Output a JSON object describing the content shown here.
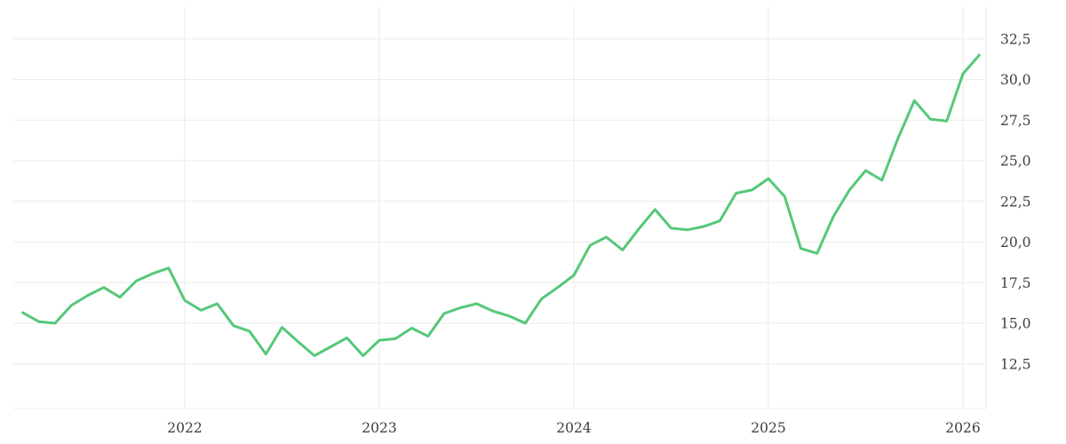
{
  "app": {
    "description": "stock price history line chart"
  },
  "colors": {
    "background": "#ffffff",
    "grid": "#ebebeb",
    "axis_label": "#3d3d3d",
    "line": "#55c878"
  },
  "chart_data": {
    "type": "line",
    "title": "",
    "xlabel": "",
    "ylabel": "",
    "grid": true,
    "legend": false,
    "decimal_separator": ",",
    "x_ticks": [
      "2022",
      "2023",
      "2024",
      "2025",
      "2026"
    ],
    "x_tick_years": [
      2022,
      2023,
      2024,
      2025,
      2026
    ],
    "y_ticks": [
      "32,5",
      "30,0",
      "27,5",
      "25,0",
      "22,5",
      "20,0",
      "17,5",
      "15,0",
      "12,5"
    ],
    "y_tick_values": [
      32.5,
      30.0,
      27.5,
      25.0,
      22.5,
      20.0,
      17.5,
      15.0,
      12.5
    ],
    "ylim_visible": [
      9.8,
      34.5
    ],
    "series": [
      {
        "name": "price",
        "color": "#55c878",
        "start_month": "2021-03",
        "interval_months": 1,
        "values": [
          15.65,
          15.1,
          15.0,
          16.1,
          16.7,
          17.2,
          16.6,
          17.6,
          18.05,
          18.4,
          16.4,
          15.8,
          16.2,
          14.85,
          14.5,
          13.1,
          14.75,
          13.85,
          13.0,
          13.55,
          14.1,
          13.0,
          13.95,
          14.05,
          14.7,
          14.2,
          15.6,
          15.95,
          16.2,
          15.75,
          15.45,
          15.0,
          16.5,
          17.2,
          17.95,
          19.8,
          20.3,
          19.5,
          20.8,
          22.0,
          20.85,
          20.75,
          20.95,
          21.3,
          23.0,
          23.2,
          23.9,
          22.8,
          19.6,
          19.3,
          21.55,
          23.2,
          24.4,
          23.8,
          26.4,
          28.7,
          27.55,
          27.45,
          30.35,
          31.5
        ]
      }
    ]
  }
}
